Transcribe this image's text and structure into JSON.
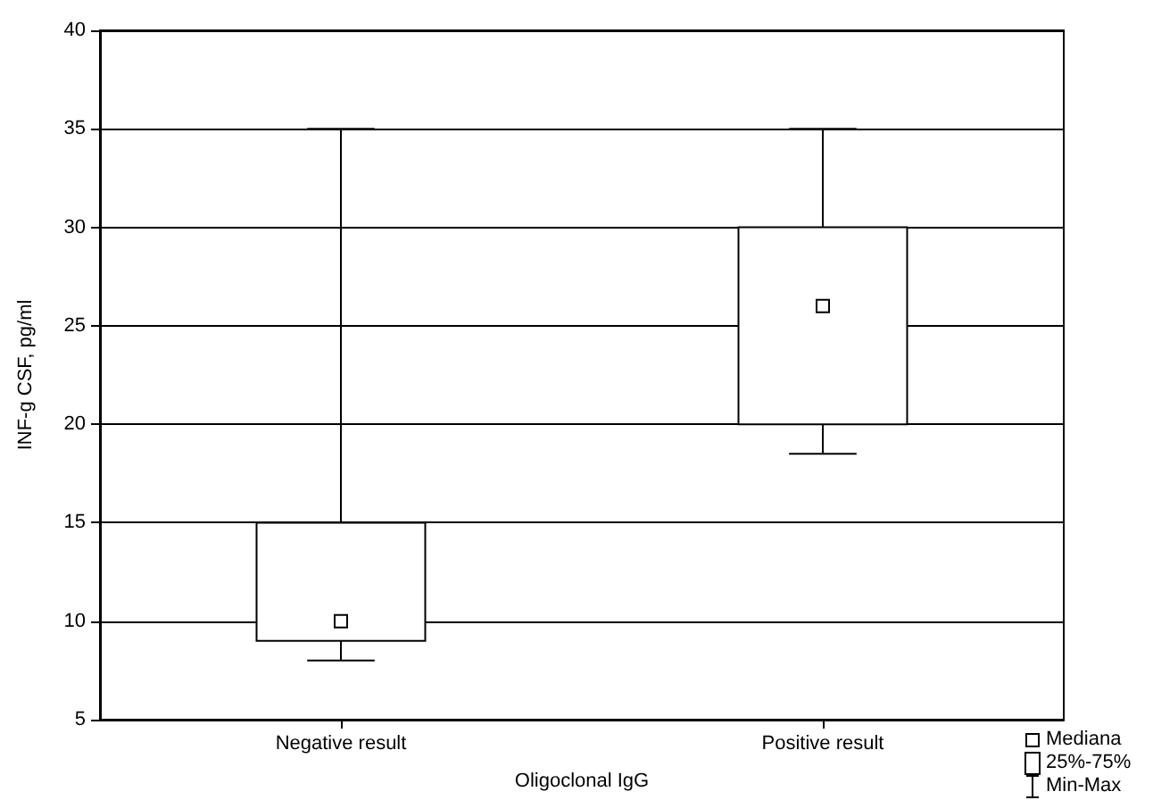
{
  "chart_data": {
    "type": "box",
    "xlabel": "Oligoclonal IgG",
    "ylabel": "INF-g CSF, pg/ml",
    "categories": [
      "Negative result",
      "Positive result"
    ],
    "boxes": [
      {
        "low": 8,
        "q1": 9,
        "median": 10,
        "q3": 15,
        "high": 35
      },
      {
        "low": 18.5,
        "q1": 20,
        "median": 26,
        "q3": 30,
        "high": 35
      }
    ],
    "ylim": [
      5,
      40
    ],
    "yticks": [
      5,
      10,
      15,
      20,
      25,
      30,
      35,
      40
    ],
    "grid": "y",
    "annotations": [
      "Mediana",
      "25%-75%",
      "Min-Max"
    ]
  }
}
